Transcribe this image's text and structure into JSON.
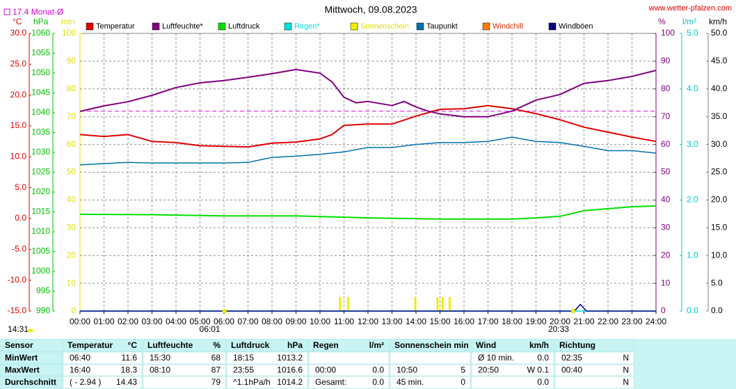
{
  "chart_data": {
    "type": "line",
    "title": "Mittwoch, 09.08.2023",
    "source": "www.wetter-pfalzen.com",
    "reference": {
      "value": 17.4,
      "label": "17.4 Monat-Ø",
      "color": "#e000e0"
    },
    "day_length": "14:31",
    "sun_events": [
      "06:01",
      "20:33"
    ],
    "grid": true,
    "xlim": [
      0,
      24
    ],
    "xticks": [
      {
        "value": 0,
        "label": "00:00"
      },
      {
        "value": 1,
        "label": "01:00"
      },
      {
        "value": 2,
        "label": "02:00"
      },
      {
        "value": 3,
        "label": "03:00"
      },
      {
        "value": 4,
        "label": "04:00"
      },
      {
        "value": 5,
        "label": "05:00"
      },
      {
        "value": 6,
        "label": "06:00"
      },
      {
        "value": 7,
        "label": "07:00"
      },
      {
        "value": 8,
        "label": "08:00"
      },
      {
        "value": 9,
        "label": "09:00"
      },
      {
        "value": 10,
        "label": "10:00"
      },
      {
        "value": 11,
        "label": "11:00"
      },
      {
        "value": 12,
        "label": "12:00"
      },
      {
        "value": 13,
        "label": "13:00"
      },
      {
        "value": 14,
        "label": "14:00"
      },
      {
        "value": 15,
        "label": "15:00"
      },
      {
        "value": 16,
        "label": "16:00"
      },
      {
        "value": 17,
        "label": "17:00"
      },
      {
        "value": 18,
        "label": "18:00"
      },
      {
        "value": 19,
        "label": "19:00"
      },
      {
        "value": 20,
        "label": "20:00"
      },
      {
        "value": 21,
        "label": "21:00"
      },
      {
        "value": 22,
        "label": "22:00"
      },
      {
        "value": 23,
        "label": "23:00"
      },
      {
        "value": 24,
        "label": "24:00"
      }
    ],
    "axes": [
      {
        "unit": "°C",
        "color": "#e00000",
        "lim": [
          -15,
          30
        ],
        "ticks": [
          {
            "value": 30,
            "label": "30.0"
          },
          {
            "value": 25,
            "label": "25.0"
          },
          {
            "value": 20,
            "label": "20.0"
          },
          {
            "value": 15,
            "label": "15.0"
          },
          {
            "value": 10,
            "label": "10.0"
          },
          {
            "value": 5,
            "label": "5.0"
          },
          {
            "value": 0,
            "label": "0.0"
          },
          {
            "value": -5,
            "label": "-5.0"
          },
          {
            "value": -10,
            "label": "-10.0"
          },
          {
            "value": -15,
            "label": "-15.0"
          }
        ]
      },
      {
        "unit": "hPa",
        "color": "#00c000",
        "lim": [
          990,
          1060
        ],
        "ticks": [
          1060,
          1055,
          1050,
          1045,
          1040,
          1035,
          1030,
          1025,
          1020,
          1015,
          1010,
          1005,
          1000,
          995,
          990
        ]
      },
      {
        "unit": "min",
        "color": "#e0e000",
        "lim": [
          0,
          100
        ],
        "ticks": [
          100,
          90,
          80,
          70,
          60,
          50,
          40,
          30,
          20,
          10,
          0
        ]
      },
      {
        "unit": "%",
        "color": "#800080",
        "lim": [
          0,
          100
        ],
        "ticks": [
          100,
          90,
          80,
          70,
          60,
          50,
          40,
          30,
          20,
          10,
          0
        ],
        "grid": true
      },
      {
        "unit": "l/m²",
        "color": "#00c8c8",
        "lim": [
          0,
          5
        ],
        "ticks": [
          {
            "value": 5,
            "label": "5.0"
          },
          {
            "value": 4,
            "label": "4.0"
          },
          {
            "value": 3,
            "label": "3.0"
          },
          {
            "value": 2,
            "label": "2.0"
          },
          {
            "value": 1,
            "label": "1.0"
          },
          {
            "value": 0,
            "label": "0.0"
          }
        ]
      },
      {
        "unit": "km/h",
        "color": "#000000",
        "lim": [
          0,
          50
        ],
        "ticks": [
          {
            "value": 50,
            "label": "50.0"
          },
          {
            "value": 45,
            "label": "45.0"
          },
          {
            "value": 40,
            "label": "40.0"
          },
          {
            "value": 35,
            "label": "35.0"
          },
          {
            "value": 30,
            "label": "30.0"
          },
          {
            "value": 25,
            "label": "25.0"
          },
          {
            "value": 20,
            "label": "20.0"
          },
          {
            "value": 15,
            "label": "15.0"
          },
          {
            "value": 10,
            "label": "10.0"
          },
          {
            "value": 5,
            "label": "5.0"
          },
          {
            "value": 0,
            "label": "0.0"
          }
        ]
      }
    ],
    "series": [
      {
        "name": "Temperatur",
        "color": "#e00000",
        "axis": "°C",
        "x": [
          0,
          1,
          2,
          3,
          4,
          5,
          6,
          7,
          8,
          9,
          10,
          10.5,
          11,
          12,
          13,
          14,
          15,
          16,
          17,
          18,
          19,
          20,
          21,
          22,
          23,
          24
        ],
        "values": [
          13.6,
          13.3,
          13.6,
          12.5,
          12.3,
          11.8,
          11.7,
          11.6,
          12.2,
          12.4,
          12.9,
          13.6,
          15.1,
          15.3,
          15.3,
          16.6,
          17.7,
          17.8,
          18.3,
          17.8,
          17.0,
          16.0,
          14.8,
          14.0,
          13.2,
          12.5
        ]
      },
      {
        "name": "Luftfeuchte*",
        "color": "#800080",
        "axis": "%",
        "x": [
          0,
          1,
          2,
          3,
          4,
          5,
          6,
          7,
          8,
          9,
          10,
          10.5,
          11,
          11.5,
          12,
          13,
          13.5,
          14,
          14.5,
          15,
          16,
          17,
          18,
          19,
          20,
          21,
          22,
          23,
          24
        ],
        "values": [
          71.9,
          73.9,
          75.4,
          77.7,
          80.5,
          82.2,
          83,
          84.2,
          85.5,
          87,
          85.7,
          82.5,
          77,
          75,
          75.5,
          74,
          75.5,
          73.5,
          72,
          71,
          70,
          70,
          72,
          76,
          78,
          82,
          83,
          84.5,
          86.7
        ]
      },
      {
        "name": "Luftdruck",
        "color": "#00e000",
        "axis": "hPa",
        "x": [
          0,
          3,
          6,
          9,
          12,
          15,
          18,
          19,
          20,
          21,
          22,
          23,
          24
        ],
        "values": [
          1014.4,
          1014.3,
          1014.0,
          1014.0,
          1013.5,
          1013.2,
          1013.2,
          1013.5,
          1013.9,
          1015.3,
          1015.8,
          1016.3,
          1016.5
        ]
      },
      {
        "name": "Regen*",
        "color": "#00e0e0",
        "label_color": "#00e0e0",
        "axis": "l/m²",
        "x": [
          0,
          24
        ],
        "values": [
          0,
          0
        ]
      },
      {
        "name": "Sonnenschein",
        "color": "#f0f000",
        "label_color": "#e0e000",
        "axis": "min",
        "kind": "bar",
        "x": [
          10.83,
          11.17,
          13.97,
          14.9,
          15.1,
          15.4
        ],
        "values": [
          5,
          5,
          5,
          5,
          5,
          5
        ]
      },
      {
        "name": "Taupunkt",
        "color": "#0070b0",
        "axis": "°C",
        "x": [
          0,
          1,
          2,
          3,
          4,
          5,
          6,
          7,
          8,
          9,
          10,
          11,
          12,
          13,
          14,
          15,
          16,
          17,
          18,
          19,
          20,
          21,
          22,
          23,
          24
        ],
        "values": [
          8.7,
          8.9,
          9.1,
          9.0,
          9.0,
          9.0,
          9.0,
          9.1,
          9.9,
          10.1,
          10.4,
          10.8,
          11.5,
          11.5,
          12.0,
          12.3,
          12.3,
          12.5,
          13.2,
          12.5,
          12.3,
          11.7,
          11.0,
          11.0,
          10.6
        ]
      },
      {
        "name": "Windchill",
        "color": "#ff8000",
        "label_color": "#e03000",
        "axis": "°C"
      },
      {
        "name": "Windböen",
        "color": "#000080",
        "axis": "km/h",
        "x": [
          0,
          20.6,
          20.85,
          21.1,
          24
        ],
        "values": [
          0,
          0,
          1.2,
          0,
          0
        ]
      }
    ]
  },
  "table": {
    "header": [
      [
        "Sensor"
      ],
      [
        "Temperatur",
        "°C"
      ],
      [
        "Luftfeuchte",
        "%"
      ],
      [
        "Luftdruck",
        "hPa"
      ],
      [
        "Regen",
        "l/m²"
      ],
      [
        "Sonnenschein min"
      ],
      [
        "Wind",
        "km/h"
      ],
      [
        "Richtung"
      ]
    ],
    "rows": [
      [
        [
          "MinWert"
        ],
        [
          "06:40",
          "11.6"
        ],
        [
          "15:30",
          "68"
        ],
        [
          "18:15",
          "1013.2"
        ],
        [],
        [],
        [
          "Ø 10 min.",
          "0.0"
        ],
        [
          "02:35",
          "N"
        ]
      ],
      [
        [
          "MaxWert"
        ],
        [
          "16:40",
          "18.3"
        ],
        [
          "08:10",
          "87"
        ],
        [
          "23:55",
          "1016.6"
        ],
        [
          "00:00",
          "0.0"
        ],
        [
          "10:50",
          "5"
        ],
        [
          "20:50",
          "W 0.1"
        ],
        [
          "00:40",
          "N"
        ]
      ],
      [
        [
          "Durchschnitt"
        ],
        [
          "( - 2.94 )",
          "14.43"
        ],
        [
          "79"
        ],
        [
          "^1.1hPa/h",
          "1014.2"
        ],
        [
          "Gesamt:",
          "0.0"
        ],
        [
          "45 min.",
          "0"
        ],
        [
          "0.0"
        ],
        [
          "N"
        ]
      ]
    ]
  }
}
